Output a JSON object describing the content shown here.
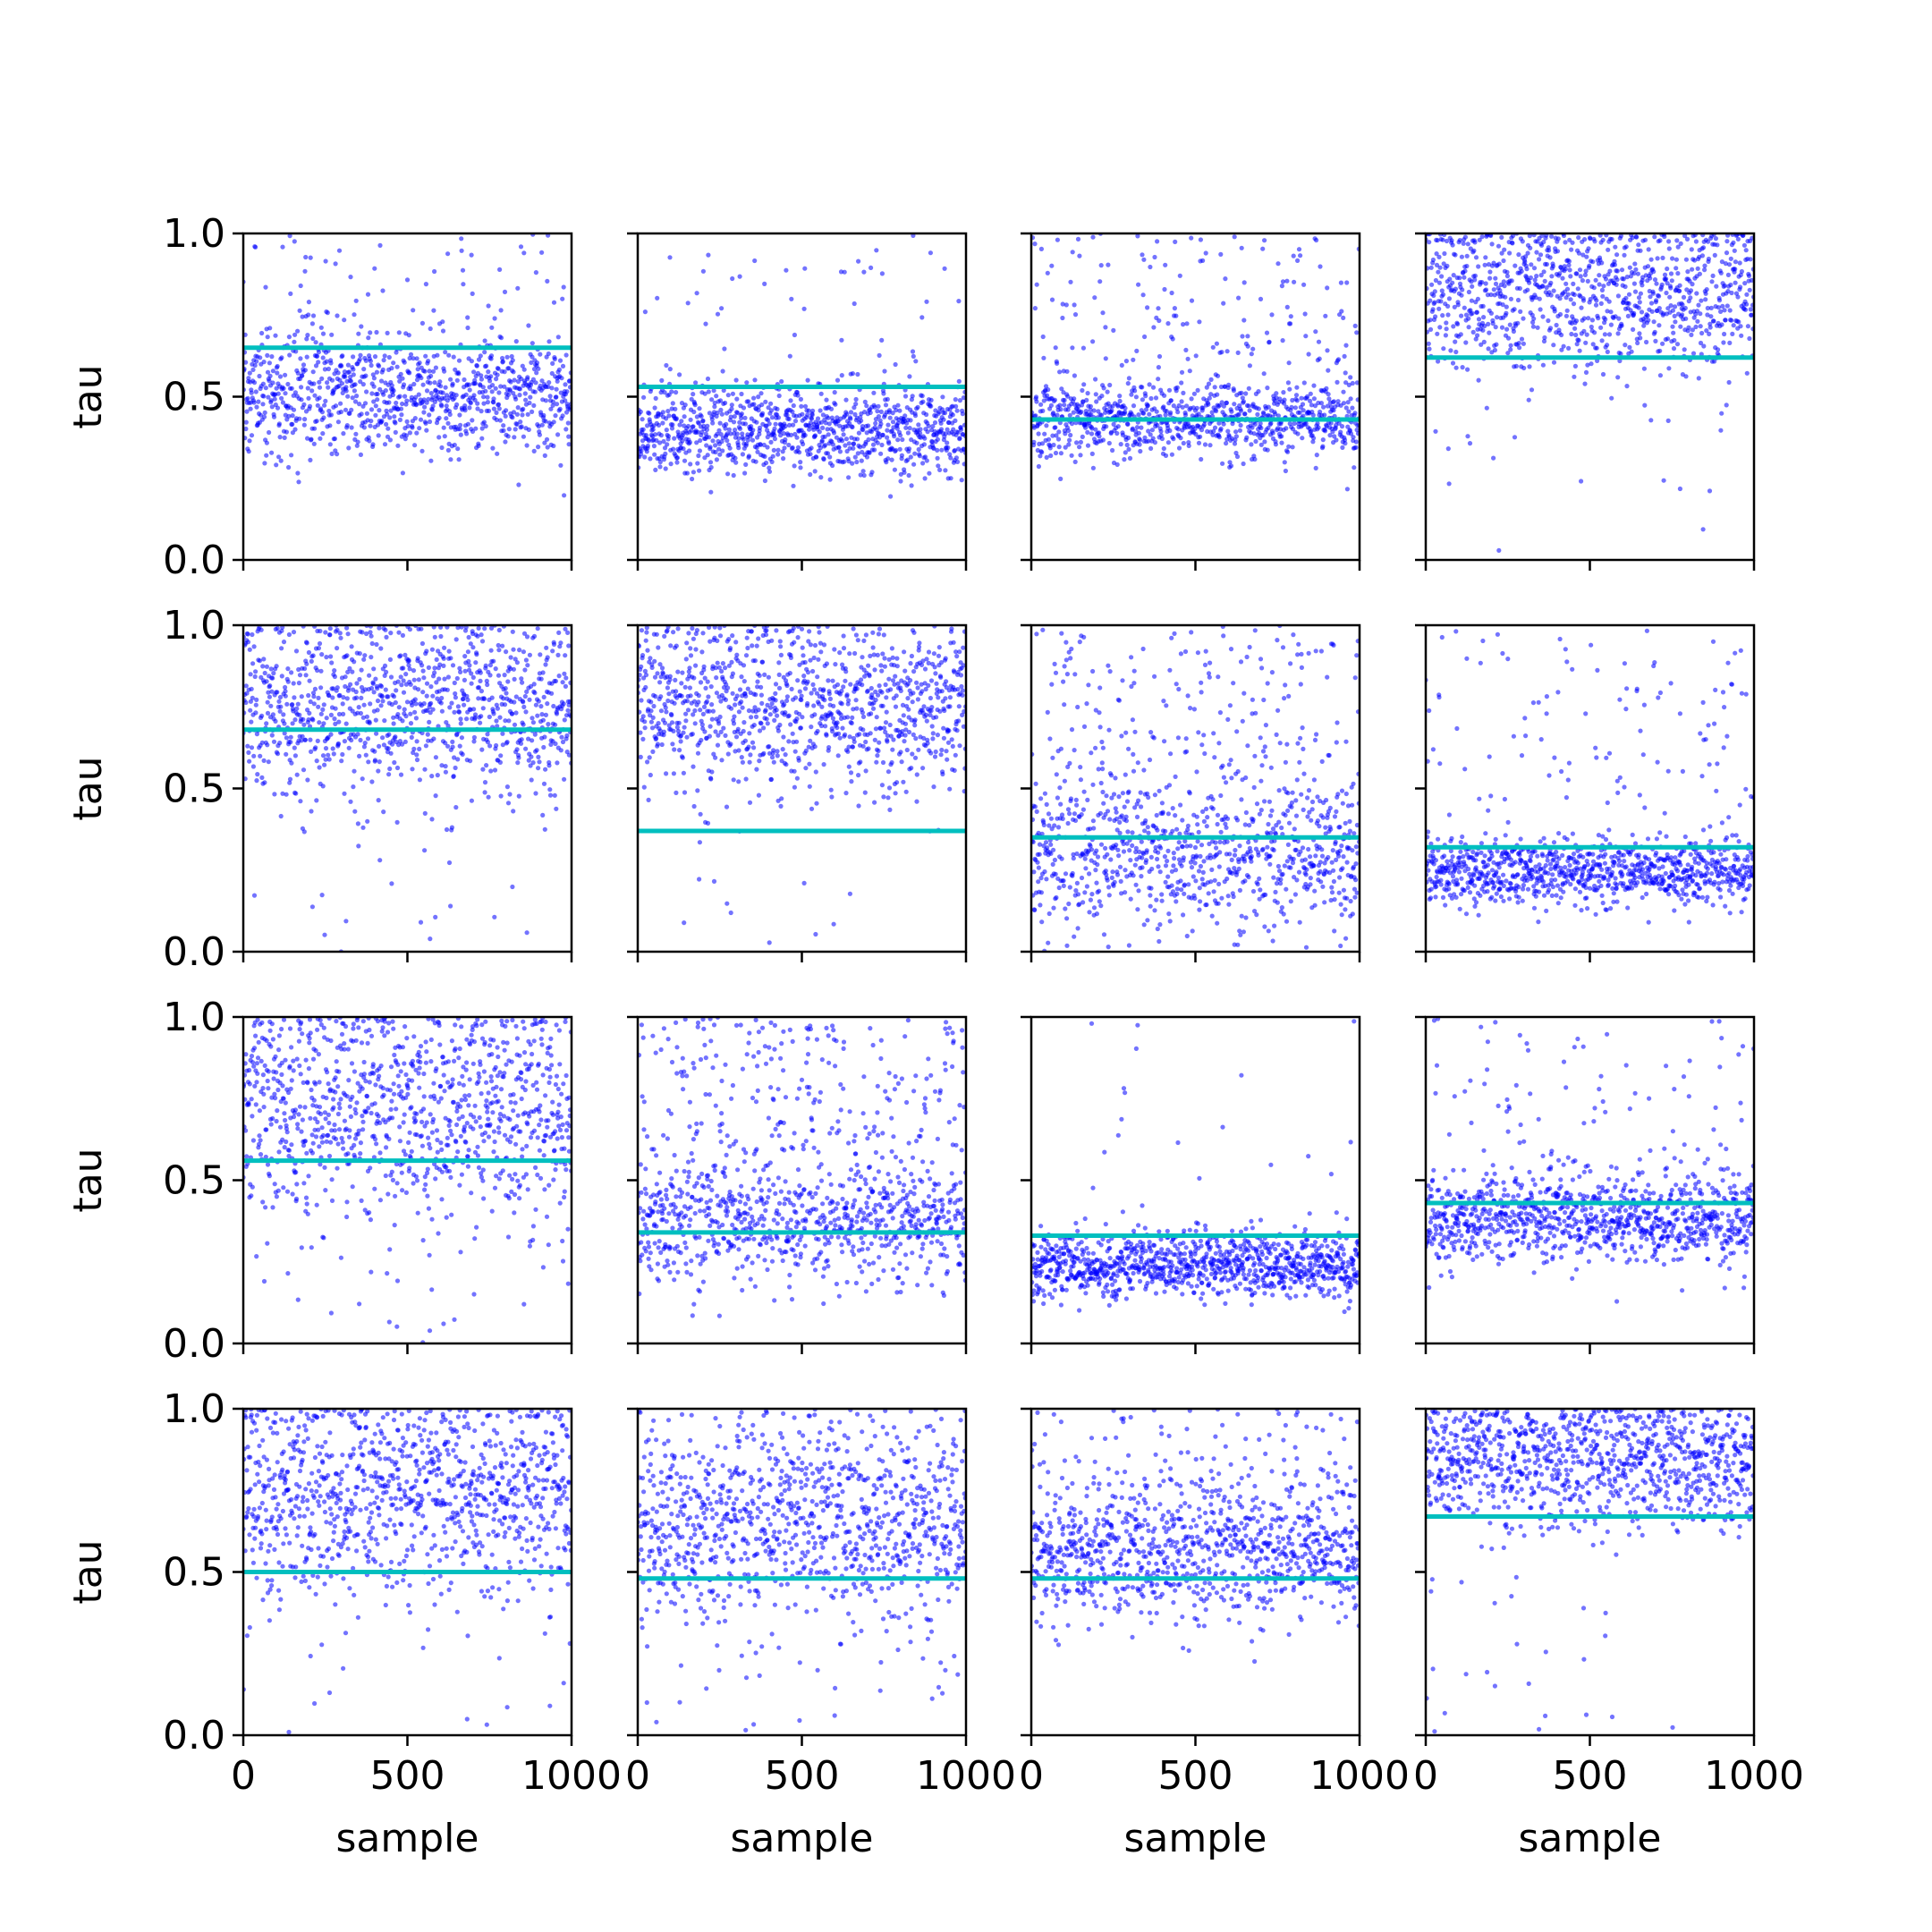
{
  "colors": {
    "points": "#0000ff",
    "mean_line": "#00bfbf",
    "axes": "#000000"
  },
  "chart_data": {
    "type": "scatter",
    "layout": "4x4 grid of panels, shared axes",
    "grid": false,
    "legend": "none",
    "n_samples": 1000,
    "xlabel": "sample",
    "ylabel": "tau",
    "xlim": [
      0,
      1000
    ],
    "ylim": [
      0,
      1
    ],
    "x_tick_labels": [
      "0",
      "500",
      "1000"
    ],
    "y_tick_labels": [
      "0.0",
      "0.5",
      "1.0"
    ],
    "panels": [
      {
        "row": 0,
        "col": 0,
        "mean_line": 0.65,
        "points": {
          "center": 0.5,
          "spread": 0.09,
          "tail": "upper",
          "tail_fraction": 0.12
        }
      },
      {
        "row": 0,
        "col": 1,
        "mean_line": 0.53,
        "points": {
          "center": 0.4,
          "spread": 0.07,
          "tail": "upper",
          "tail_fraction": 0.05
        }
      },
      {
        "row": 0,
        "col": 2,
        "mean_line": 0.43,
        "points": {
          "center": 0.43,
          "spread": 0.06,
          "tail": "upper",
          "tail_fraction": 0.18
        }
      },
      {
        "row": 0,
        "col": 3,
        "mean_line": 0.62,
        "points": {
          "center": 0.82,
          "spread": 0.13,
          "tail": "lower",
          "tail_fraction": 0.03
        }
      },
      {
        "row": 1,
        "col": 0,
        "mean_line": 0.68,
        "points": {
          "center": 0.76,
          "spread": 0.14,
          "tail": "lower",
          "tail_fraction": 0.04
        }
      },
      {
        "row": 1,
        "col": 1,
        "mean_line": 0.37,
        "points": {
          "center": 0.76,
          "spread": 0.13,
          "tail": "lower",
          "tail_fraction": 0.02
        }
      },
      {
        "row": 1,
        "col": 2,
        "mean_line": 0.35,
        "points": {
          "center": 0.28,
          "spread": 0.11,
          "tail": "upper",
          "tail_fraction": 0.3
        }
      },
      {
        "row": 1,
        "col": 3,
        "mean_line": 0.32,
        "points": {
          "center": 0.24,
          "spread": 0.05,
          "tail": "upper",
          "tail_fraction": 0.12
        }
      },
      {
        "row": 2,
        "col": 0,
        "mean_line": 0.56,
        "points": {
          "center": 0.72,
          "spread": 0.17,
          "tail": "lower",
          "tail_fraction": 0.05
        }
      },
      {
        "row": 2,
        "col": 1,
        "mean_line": 0.34,
        "points": {
          "center": 0.36,
          "spread": 0.09,
          "tail": "upper",
          "tail_fraction": 0.35
        }
      },
      {
        "row": 2,
        "col": 2,
        "mean_line": 0.33,
        "points": {
          "center": 0.24,
          "spread": 0.05,
          "tail": "upper",
          "tail_fraction": 0.03
        }
      },
      {
        "row": 2,
        "col": 3,
        "mean_line": 0.43,
        "points": {
          "center": 0.38,
          "spread": 0.07,
          "tail": "upper",
          "tail_fraction": 0.12
        }
      },
      {
        "row": 3,
        "col": 0,
        "mean_line": 0.5,
        "points": {
          "center": 0.75,
          "spread": 0.15,
          "tail": "lower",
          "tail_fraction": 0.05
        }
      },
      {
        "row": 3,
        "col": 1,
        "mean_line": 0.48,
        "points": {
          "center": 0.66,
          "spread": 0.16,
          "tail": "lower",
          "tail_fraction": 0.05
        }
      },
      {
        "row": 3,
        "col": 2,
        "mean_line": 0.48,
        "points": {
          "center": 0.55,
          "spread": 0.1,
          "tail": "upper",
          "tail_fraction": 0.2
        }
      },
      {
        "row": 3,
        "col": 3,
        "mean_line": 0.67,
        "points": {
          "center": 0.84,
          "spread": 0.1,
          "tail": "lower",
          "tail_fraction": 0.04
        }
      }
    ]
  }
}
